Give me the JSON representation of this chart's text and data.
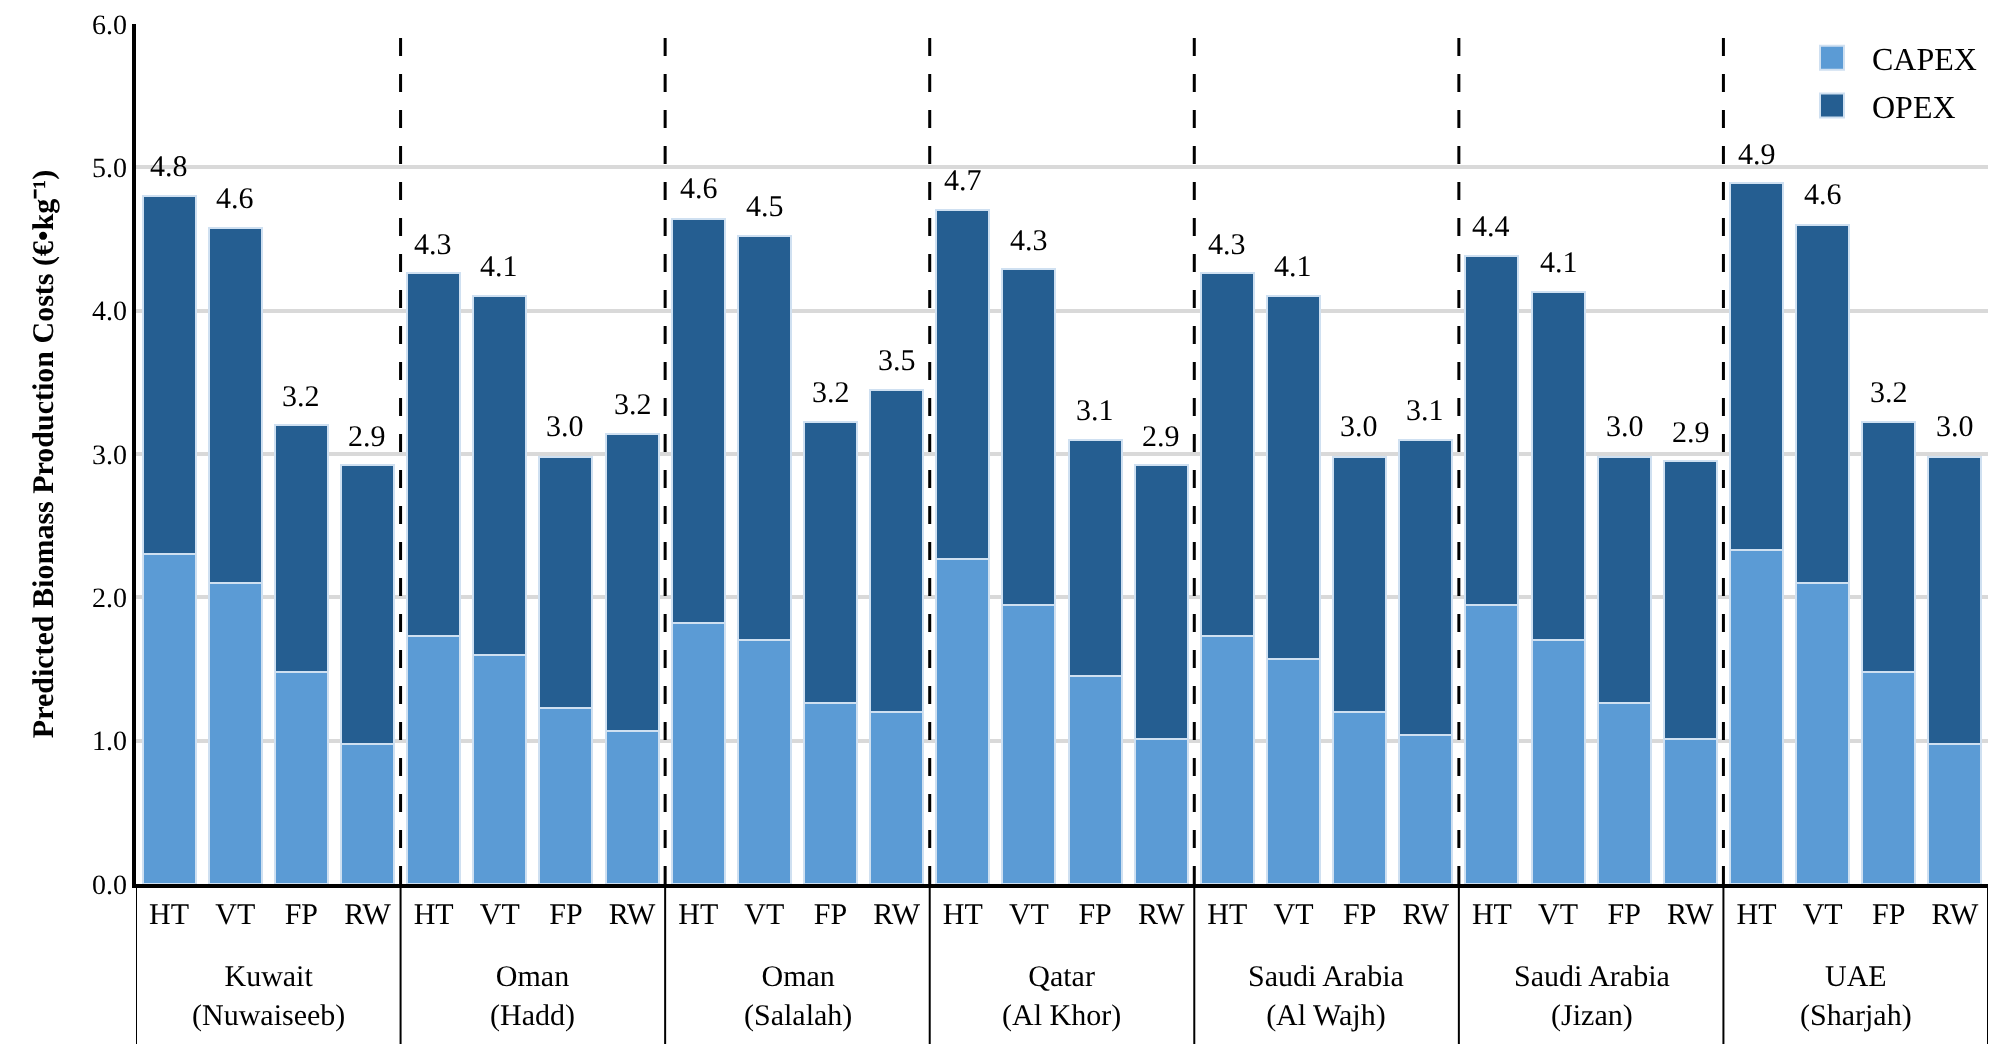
{
  "chart_data": {
    "type": "bar",
    "stacked": true,
    "ylabel": "Predicted Biomass Production Costs (€•kg⁻¹)",
    "categories": [
      "HT",
      "VT",
      "FP",
      "RW",
      "HT",
      "VT",
      "FP",
      "RW",
      "HT",
      "VT",
      "FP",
      "RW",
      "HT",
      "VT",
      "FP",
      "RW",
      "HT",
      "VT",
      "FP",
      "RW",
      "HT",
      "VT",
      "FP",
      "RW",
      "HT",
      "VT",
      "FP",
      "RW"
    ],
    "series": [
      {
        "name": "CAPEX",
        "color": "#5b9bd5",
        "values": [
          2.3,
          2.1,
          1.48,
          0.98,
          1.73,
          1.6,
          1.23,
          1.07,
          1.82,
          1.7,
          1.26,
          1.2,
          2.27,
          1.95,
          1.45,
          1.01,
          1.73,
          1.57,
          1.2,
          1.04,
          1.95,
          1.7,
          1.26,
          1.01,
          2.33,
          2.1,
          1.48,
          0.98
        ]
      },
      {
        "name": "OPEX",
        "color": "#255e91",
        "values": [
          2.5,
          2.48,
          1.72,
          1.94,
          2.53,
          2.5,
          1.75,
          2.07,
          2.82,
          2.82,
          1.96,
          2.25,
          2.43,
          2.34,
          1.65,
          1.91,
          2.53,
          2.53,
          1.78,
          2.06,
          2.43,
          2.43,
          1.72,
          1.94,
          2.56,
          2.5,
          1.74,
          2.0
        ]
      }
    ],
    "totals": [
      "4.8",
      "4.6",
      "3.2",
      "2.9",
      "4.3",
      "4.1",
      "3.0",
      "3.2",
      "4.6",
      "4.5",
      "3.2",
      "3.5",
      "4.7",
      "4.3",
      "3.1",
      "2.9",
      "4.3",
      "4.1",
      "3.0",
      "3.1",
      "4.4",
      "4.1",
      "3.0",
      "2.9",
      "4.9",
      "4.6",
      "3.2",
      "3.0"
    ],
    "annotations": [
      "Kuwait\n(Nuwaiseeb)",
      "Oman\n(Hadd)",
      "Oman\n(Salalah)",
      "Qatar\n(Al Khor)",
      "Saudi Arabia\n(Al Wajh)",
      "Saudi Arabia\n(Jizan)",
      "UAE\n(Sharjah)"
    ],
    "ylim": [
      0,
      6
    ],
    "yticks": [
      {
        "value": 0,
        "label": "0.0"
      },
      {
        "value": 1,
        "label": "1.0"
      },
      {
        "value": 2,
        "label": "2.0"
      },
      {
        "value": 3,
        "label": "3.0"
      },
      {
        "value": 4,
        "label": "4.0"
      },
      {
        "value": 5,
        "label": "5.0"
      },
      {
        "value": 6,
        "label": "6.0"
      }
    ],
    "grid": "y",
    "legend": "top right"
  }
}
